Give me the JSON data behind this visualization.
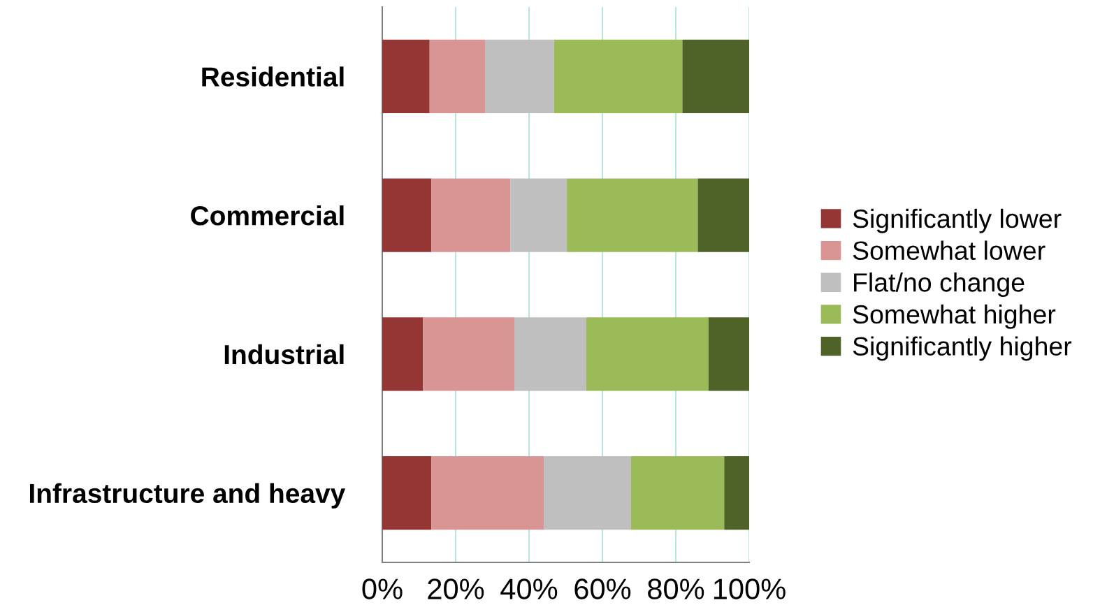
{
  "chart_data": {
    "type": "bar",
    "orientation": "horizontal",
    "stacked": true,
    "categories": [
      "Residential",
      "Commercial",
      "Industrial",
      "Infrastructure and heavy"
    ],
    "series": [
      {
        "name": "Significantly lower",
        "color": "#943634",
        "values": [
          12.9,
          13.4,
          11.1,
          13.4
        ]
      },
      {
        "name": "Somewhat lower",
        "color": "#d99594",
        "values": [
          15.1,
          21.5,
          24.9,
          30.6
        ]
      },
      {
        "name": "Flat/no change",
        "color": "#bfbfbf",
        "values": [
          18.8,
          15.4,
          19.6,
          23.8
        ]
      },
      {
        "name": "Somewhat higher",
        "color": "#9bbb59",
        "values": [
          35.0,
          35.7,
          33.3,
          25.4
        ]
      },
      {
        "name": "Significantly higher",
        "color": "#4f6228",
        "values": [
          18.2,
          14.0,
          11.1,
          6.8
        ]
      }
    ],
    "xlim": [
      0,
      100
    ],
    "xticks": [
      {
        "value": 0,
        "label": "0%"
      },
      {
        "value": 20,
        "label": "20%"
      },
      {
        "value": 40,
        "label": "40%"
      },
      {
        "value": 60,
        "label": "60%"
      },
      {
        "value": 80,
        "label": "80%"
      },
      {
        "value": 100,
        "label": "100%"
      }
    ],
    "grid": "x",
    "legend": "right"
  }
}
